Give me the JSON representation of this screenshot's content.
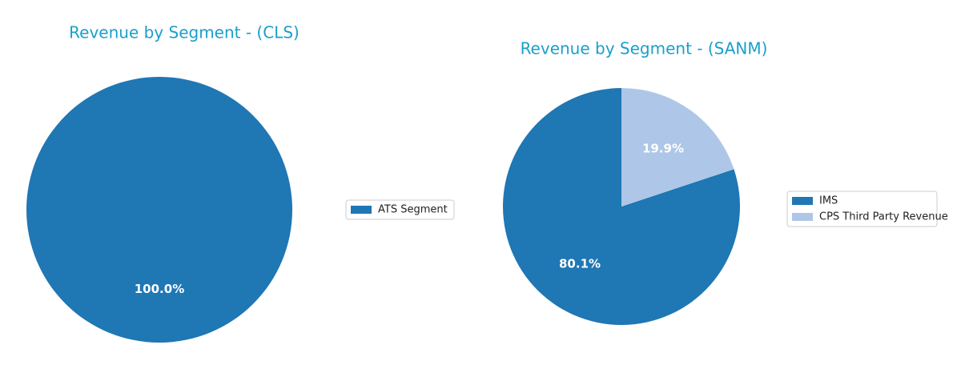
{
  "chart_data": [
    {
      "type": "pie",
      "title": "Revenue by Segment - (CLS)",
      "categories": [
        "ATS Segment"
      ],
      "values": [
        100
      ],
      "value_labels": [
        "100.0%"
      ],
      "colors": [
        "#1f77b4"
      ]
    },
    {
      "type": "pie",
      "title": "Revenue by Segment - (SANM)",
      "categories": [
        "IMS",
        "CPS Third Party Revenue"
      ],
      "values": [
        80.1,
        19.9
      ],
      "value_labels": [
        "80.1%",
        "19.9%"
      ],
      "colors": [
        "#1f77b4",
        "#aec7e8"
      ]
    }
  ]
}
